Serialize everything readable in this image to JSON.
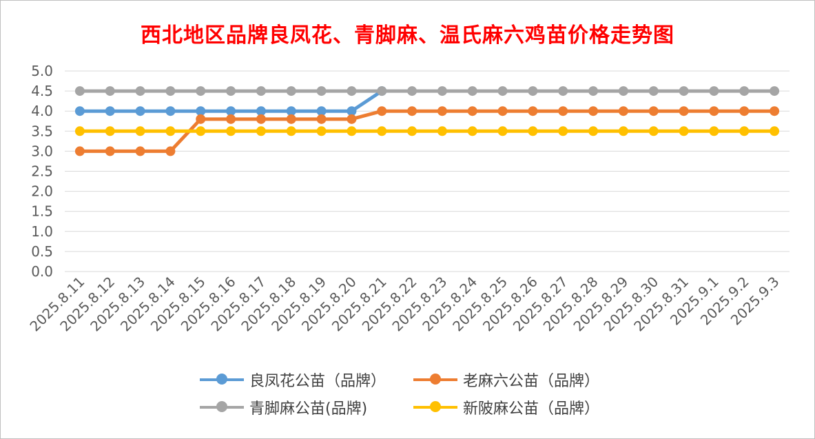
{
  "chart_data": {
    "type": "line",
    "title": "西北地区品牌良凤花、青脚麻、温氏麻六鸡苗价格走势图",
    "xlabel": "",
    "ylabel": "",
    "ylim": [
      0,
      5
    ],
    "yticks": [
      "0.0",
      "0.5",
      "1.0",
      "1.5",
      "2.0",
      "2.5",
      "3.0",
      "3.5",
      "4.0",
      "4.5",
      "5.0"
    ],
    "grid": true,
    "legend_position": "bottom",
    "categories": [
      "2025.8.11",
      "2025.8.12",
      "2025.8.13",
      "2025.8.14",
      "2025.8.15",
      "2025.8.16",
      "2025.8.17",
      "2025.8.18",
      "2025.8.19",
      "2025.8.20",
      "2025.8.21",
      "2025.8.22",
      "2025.8.23",
      "2025.8.24",
      "2025.8.25",
      "2025.8.26",
      "2025.8.27",
      "2025.8.28",
      "2025.8.29",
      "2025.8.30",
      "2025.8.31",
      "2025.9.1",
      "2025.9.2",
      "2025.9.3"
    ],
    "series": [
      {
        "name": "良凤花公苗（品牌）",
        "color": "#5b9bd5",
        "values": [
          4.0,
          4.0,
          4.0,
          4.0,
          4.0,
          4.0,
          4.0,
          4.0,
          4.0,
          4.0,
          4.5,
          null,
          null,
          null,
          null,
          null,
          null,
          null,
          null,
          null,
          null,
          null,
          null,
          null
        ]
      },
      {
        "name": "老麻六公苗（品牌）",
        "color": "#ed7d31",
        "values": [
          3.0,
          3.0,
          3.0,
          3.0,
          3.8,
          3.8,
          3.8,
          3.8,
          3.8,
          3.8,
          4.0,
          4.0,
          4.0,
          4.0,
          4.0,
          4.0,
          4.0,
          4.0,
          4.0,
          4.0,
          4.0,
          4.0,
          4.0,
          4.0
        ]
      },
      {
        "name": "青脚麻公苗(品牌)",
        "color": "#a5a5a5",
        "values": [
          4.5,
          4.5,
          4.5,
          4.5,
          4.5,
          4.5,
          4.5,
          4.5,
          4.5,
          4.5,
          4.5,
          4.5,
          4.5,
          4.5,
          4.5,
          4.5,
          4.5,
          4.5,
          4.5,
          4.5,
          4.5,
          4.5,
          4.5,
          4.5
        ]
      },
      {
        "name": "新陂麻公苗（品牌）",
        "color": "#ffc000",
        "values": [
          3.5,
          3.5,
          3.5,
          3.5,
          3.5,
          3.5,
          3.5,
          3.5,
          3.5,
          3.5,
          3.5,
          3.5,
          3.5,
          3.5,
          3.5,
          3.5,
          3.5,
          3.5,
          3.5,
          3.5,
          3.5,
          3.5,
          3.5,
          3.5
        ]
      }
    ],
    "draw_order": [
      0,
      1,
      3,
      2
    ],
    "legend_order": [
      0,
      1,
      2,
      3
    ]
  }
}
